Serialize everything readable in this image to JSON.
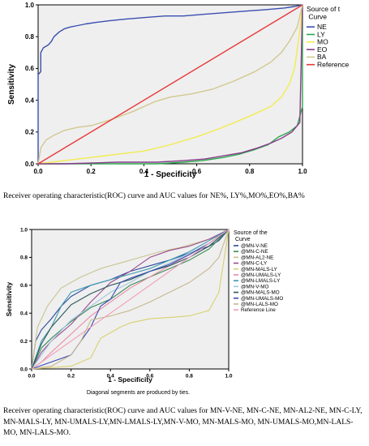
{
  "charts": {
    "chart_data": [
      {
        "type": "line",
        "xlabel": "1 - Specificity",
        "ylabel": "Sensitivity",
        "xlim": [
          0,
          1
        ],
        "ylim": [
          0,
          1
        ],
        "xticks": [
          "0.0",
          "0.2",
          "0.4",
          "0.6",
          "0.8",
          "1.0"
        ],
        "yticks": [
          "0.0",
          "0.2",
          "0.4",
          "0.6",
          "0.8",
          "1.0"
        ],
        "legend_title": "Source of t Curve",
        "legend_position": "right",
        "series": [
          {
            "name": "NE",
            "color": "#3a4fb0",
            "x": [
              0,
              0,
              0.01,
              0.01,
              0.02,
              0.03,
              0.04,
              0.05,
              0.06,
              0.08,
              0.1,
              0.12,
              0.15,
              0.18,
              0.22,
              0.27,
              0.33,
              0.4,
              0.48,
              0.55,
              0.62,
              0.7,
              0.78,
              0.86,
              0.93,
              0.97,
              1
            ],
            "y": [
              0,
              0.56,
              0.58,
              0.7,
              0.73,
              0.74,
              0.75,
              0.77,
              0.8,
              0.83,
              0.85,
              0.86,
              0.87,
              0.88,
              0.89,
              0.9,
              0.91,
              0.92,
              0.93,
              0.93,
              0.94,
              0.95,
              0.96,
              0.97,
              0.98,
              0.99,
              1
            ]
          },
          {
            "name": "LY",
            "color": "#2aa84a",
            "x": [
              0,
              0.12,
              0.3,
              0.45,
              0.55,
              0.62,
              0.7,
              0.76,
              0.82,
              0.87,
              0.91,
              0.95,
              0.98,
              0.99,
              1,
              1
            ],
            "y": [
              0,
              0,
              0,
              0,
              0.01,
              0.02,
              0.04,
              0.06,
              0.09,
              0.12,
              0.17,
              0.2,
              0.24,
              0.3,
              0.36,
              1
            ]
          },
          {
            "name": "MO",
            "color": "#f2ec50",
            "x": [
              0,
              0.1,
              0.2,
              0.3,
              0.4,
              0.5,
              0.6,
              0.7,
              0.8,
              0.88,
              0.92,
              0.95,
              0.97,
              0.98,
              0.99,
              1
            ],
            "y": [
              0,
              0.02,
              0.04,
              0.06,
              0.08,
              0.12,
              0.17,
              0.23,
              0.3,
              0.36,
              0.42,
              0.5,
              0.6,
              0.72,
              0.84,
              1
            ]
          },
          {
            "name": "EO",
            "color": "#8a3c8c",
            "x": [
              0,
              0.1,
              0.3,
              0.45,
              0.55,
              0.63,
              0.7,
              0.77,
              0.83,
              0.88,
              0.92,
              0.96,
              0.99,
              1
            ],
            "y": [
              0,
              0,
              0.01,
              0.01,
              0.02,
              0.03,
              0.05,
              0.07,
              0.1,
              0.13,
              0.16,
              0.2,
              0.26,
              1
            ]
          },
          {
            "name": "BA",
            "color": "#d2c890",
            "x": [
              0,
              0.01,
              0.03,
              0.06,
              0.1,
              0.15,
              0.2,
              0.28,
              0.36,
              0.44,
              0.5,
              0.58,
              0.66,
              0.74,
              0.82,
              0.88,
              0.92,
              0.95,
              0.98,
              1
            ],
            "y": [
              0,
              0.1,
              0.15,
              0.18,
              0.21,
              0.23,
              0.24,
              0.28,
              0.33,
              0.39,
              0.42,
              0.44,
              0.47,
              0.52,
              0.58,
              0.64,
              0.7,
              0.77,
              0.86,
              1
            ]
          },
          {
            "name": "Reference",
            "color": "#e8383a",
            "x": [
              0,
              1
            ],
            "y": [
              0,
              1
            ]
          }
        ]
      },
      {
        "type": "line",
        "xlabel": "1 - Specificity",
        "ylabel": "Sensitivity",
        "xlim": [
          0,
          1
        ],
        "ylim": [
          0,
          1
        ],
        "xticks": [
          "0.0",
          "0.2",
          "0.4",
          "0.6",
          "0.8",
          "1.0"
        ],
        "yticks": [
          "0.0",
          "0.2",
          "0.4",
          "0.6",
          "0.8",
          "1.0"
        ],
        "legend_title": "Source of the Curve",
        "legend_position": "right",
        "footnote": "Diagonal segments are produced by ties.",
        "series": [
          {
            "name": "@MN-V-NE",
            "color": "#2e4a9e",
            "x": [
              0,
              0.02,
              0.05,
              0.1,
              0.15,
              0.2,
              0.3,
              0.4,
              0.5,
              0.6,
              0.7,
              0.8,
              0.9,
              0.95,
              1
            ],
            "y": [
              0,
              0.2,
              0.28,
              0.36,
              0.45,
              0.52,
              0.6,
              0.64,
              0.7,
              0.74,
              0.78,
              0.83,
              0.88,
              0.92,
              1
            ]
          },
          {
            "name": "@MN-C-NE",
            "color": "#3a8a55",
            "x": [
              0,
              0.05,
              0.1,
              0.2,
              0.3,
              0.4,
              0.5,
              0.6,
              0.7,
              0.8,
              0.9,
              1
            ],
            "y": [
              0,
              0.15,
              0.22,
              0.34,
              0.44,
              0.5,
              0.6,
              0.66,
              0.72,
              0.78,
              0.86,
              1
            ]
          },
          {
            "name": "@MN-AL2-NE",
            "color": "#c8c490",
            "x": [
              0,
              0.03,
              0.08,
              0.15,
              0.25,
              0.35,
              0.45,
              0.55,
              0.65,
              0.75,
              0.85,
              0.95,
              1
            ],
            "y": [
              0,
              0.3,
              0.45,
              0.58,
              0.66,
              0.72,
              0.76,
              0.8,
              0.84,
              0.87,
              0.91,
              0.95,
              1
            ]
          },
          {
            "name": "@MN-C-LY",
            "color": "#9a4a90",
            "x": [
              0,
              0.05,
              0.1,
              0.2,
              0.3,
              0.4,
              0.5,
              0.6,
              0.7,
              0.8,
              0.9,
              1
            ],
            "y": [
              0,
              0.12,
              0.2,
              0.32,
              0.48,
              0.62,
              0.7,
              0.8,
              0.85,
              0.88,
              0.93,
              1
            ]
          },
          {
            "name": "@MN-MALS-LY",
            "color": "#d8d070",
            "x": [
              0,
              0.2,
              0.3,
              0.35,
              0.45,
              0.5,
              0.6,
              0.7,
              0.8,
              0.9,
              0.95,
              1
            ],
            "y": [
              0,
              0.02,
              0.08,
              0.22,
              0.3,
              0.33,
              0.36,
              0.37,
              0.38,
              0.42,
              0.55,
              1
            ]
          },
          {
            "name": "@MN-UMALS-LY",
            "color": "#e88aa8",
            "x": [
              0,
              0.05,
              0.1,
              0.2,
              0.3,
              0.4,
              0.5,
              0.6,
              0.7,
              0.8,
              0.9,
              1
            ],
            "y": [
              0,
              0.05,
              0.12,
              0.25,
              0.38,
              0.48,
              0.58,
              0.66,
              0.74,
              0.82,
              0.9,
              1
            ]
          },
          {
            "name": "@MN-LMALS-LY",
            "color": "#3a9ab0",
            "x": [
              0,
              0.05,
              0.1,
              0.15,
              0.2,
              0.3,
              0.4,
              0.5,
              0.6,
              0.7,
              0.8,
              0.9,
              1
            ],
            "y": [
              0,
              0.2,
              0.3,
              0.45,
              0.55,
              0.6,
              0.64,
              0.68,
              0.72,
              0.78,
              0.84,
              0.92,
              1
            ]
          },
          {
            "name": "@MN-V-MO",
            "color": "#a0c8e0",
            "x": [
              0,
              0.05,
              0.1,
              0.2,
              0.3,
              0.4,
              0.5,
              0.6,
              0.7,
              0.8,
              0.9,
              1
            ],
            "y": [
              0,
              0.1,
              0.2,
              0.35,
              0.45,
              0.55,
              0.62,
              0.7,
              0.76,
              0.83,
              0.9,
              1
            ]
          },
          {
            "name": "@MN-MALS-MO",
            "color": "#2a5a5a",
            "x": [
              0,
              0.05,
              0.1,
              0.2,
              0.3,
              0.4,
              0.5,
              0.6,
              0.7,
              0.8,
              0.9,
              1
            ],
            "y": [
              0,
              0.18,
              0.3,
              0.46,
              0.54,
              0.6,
              0.64,
              0.7,
              0.74,
              0.8,
              0.88,
              1
            ]
          },
          {
            "name": "@MN-UMALS-MO",
            "color": "#3a4ab0",
            "x": [
              0,
              0.1,
              0.2,
              0.3,
              0.35,
              0.4,
              0.45,
              0.5,
              0.6,
              0.7,
              0.8,
              0.9,
              1
            ],
            "y": [
              0,
              0.05,
              0.1,
              0.3,
              0.45,
              0.5,
              0.62,
              0.65,
              0.7,
              0.75,
              0.82,
              0.9,
              1
            ]
          },
          {
            "name": "@MN-LALS-MO",
            "color": "#c8b890",
            "x": [
              0,
              0.1,
              0.2,
              0.25,
              0.3,
              0.4,
              0.5,
              0.6,
              0.7,
              0.8,
              0.9,
              0.95,
              1
            ],
            "y": [
              0,
              0.02,
              0.1,
              0.2,
              0.35,
              0.38,
              0.42,
              0.48,
              0.55,
              0.62,
              0.72,
              0.8,
              1
            ]
          },
          {
            "name": "Reference Line",
            "color": "#f29db8",
            "x": [
              0,
              1
            ],
            "y": [
              0,
              1
            ]
          }
        ]
      }
    ]
  },
  "captions": {
    "caption1": "Receiver operating characteristic(ROC) curve  and AUC values for NE%, LY%,MO%,EO%,BA%",
    "caption2": "Receiver operating characteristic(ROC) curve  and AUC values for MN-V-NE, MN-C-NE, MN-AL2-NE, MN-C-LY, MN-MALS-LY, MN-UMALS-LY,MN-LMALS-LY,MN-V-MO, MN-MALS-MO, MN-UMALS-MO,MN-LALS-MO, MN-LALS-MO."
  }
}
